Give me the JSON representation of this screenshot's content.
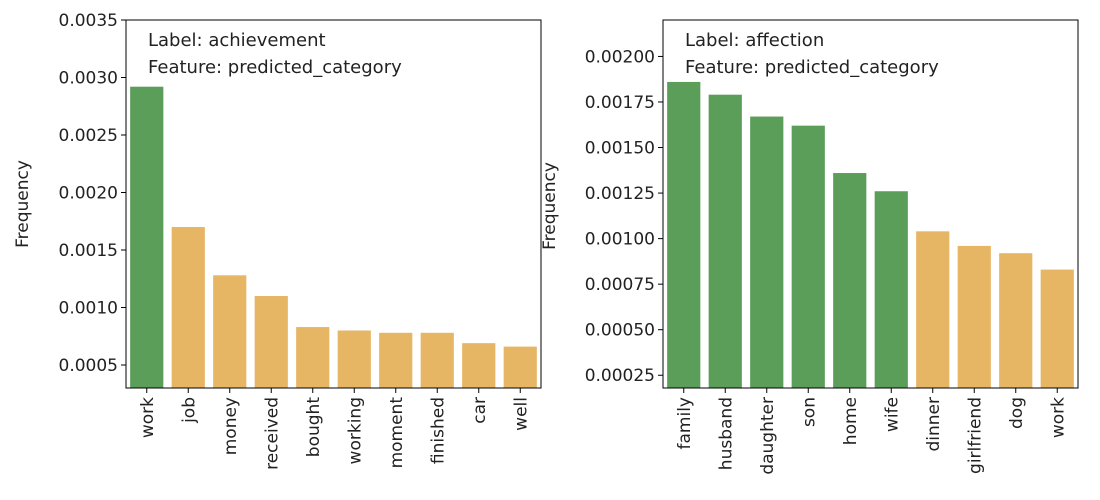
{
  "chart_data": [
    {
      "type": "bar",
      "annotation": [
        "Label: achievement",
        "Feature: predicted_category"
      ],
      "ylabel": "Frequency",
      "ylim": [
        0.0003,
        0.0035
      ],
      "yticks": [
        0.0005,
        0.001,
        0.0015,
        0.002,
        0.0025,
        0.003,
        0.0035
      ],
      "ytick_labels": [
        "0.0005",
        "0.0010",
        "0.0015",
        "0.0020",
        "0.0025",
        "0.0030",
        "0.0035"
      ],
      "categories": [
        "work",
        "job",
        "money",
        "received",
        "bought",
        "working",
        "moment",
        "finished",
        "car",
        "well"
      ],
      "values": [
        0.00292,
        0.0017,
        0.00128,
        0.0011,
        0.00083,
        0.0008,
        0.00078,
        0.00078,
        0.00069,
        0.00066
      ],
      "bar_groups": [
        "green",
        "orange",
        "orange",
        "orange",
        "orange",
        "orange",
        "orange",
        "orange",
        "orange",
        "orange"
      ],
      "colors": {
        "green": "#5a9e5a",
        "orange": "#e6b665"
      }
    },
    {
      "type": "bar",
      "annotation": [
        "Label: affection",
        "Feature: predicted_category"
      ],
      "ylabel": "Frequency",
      "ylim": [
        0.00018,
        0.0022
      ],
      "yticks": [
        0.00025,
        0.0005,
        0.00075,
        0.001,
        0.00125,
        0.0015,
        0.00175,
        0.002
      ],
      "ytick_labels": [
        "0.00025",
        "0.00050",
        "0.00075",
        "0.00100",
        "0.00125",
        "0.00150",
        "0.00175",
        "0.00200"
      ],
      "categories": [
        "family",
        "husband",
        "daughter",
        "son",
        "home",
        "wife",
        "dinner",
        "girlfriend",
        "dog",
        "work"
      ],
      "values": [
        0.00186,
        0.00179,
        0.00167,
        0.00162,
        0.00136,
        0.00126,
        0.00104,
        0.00096,
        0.00092,
        0.00083
      ],
      "bar_groups": [
        "green",
        "green",
        "green",
        "green",
        "green",
        "green",
        "orange",
        "orange",
        "orange",
        "orange"
      ],
      "colors": {
        "green": "#5a9e5a",
        "orange": "#e6b665"
      }
    }
  ]
}
